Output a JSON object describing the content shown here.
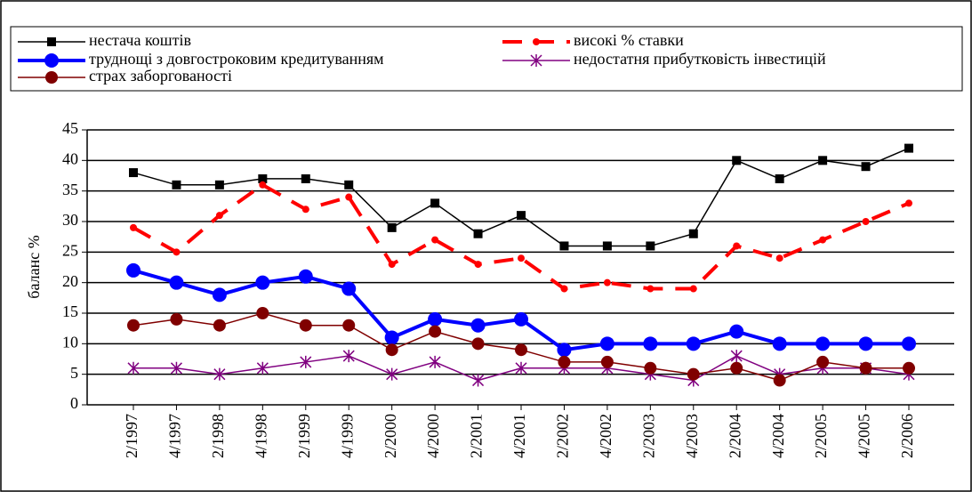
{
  "chart_data": {
    "type": "line",
    "ylabel": "баланс %",
    "categories": [
      "2/1997",
      "4/1997",
      "2/1998",
      "4/1998",
      "2/1999",
      "4/1999",
      "2/2000",
      "4/2000",
      "2/2001",
      "4/2001",
      "2/2002",
      "4/2002",
      "2/2003",
      "4/2003",
      "2/2004",
      "4/2004",
      "2/2005",
      "4/2005",
      "2/2006"
    ],
    "series": [
      {
        "name": "нестача коштів",
        "color": "#000000",
        "marker": "square",
        "dash": false,
        "width": 1.5,
        "values": [
          38,
          36,
          36,
          37,
          37,
          36,
          29,
          33,
          28,
          31,
          26,
          26,
          26,
          28,
          40,
          37,
          40,
          39,
          42
        ]
      },
      {
        "name": "високі % ставки",
        "color": "#ff0000",
        "marker": "circle",
        "dash": true,
        "width": 4,
        "values": [
          29,
          25,
          31,
          36,
          32,
          34,
          23,
          27,
          23,
          24,
          19,
          20,
          19,
          19,
          26,
          24,
          27,
          30,
          33
        ]
      },
      {
        "name": "труднощі з довгостроковим кредитуванням",
        "color": "#0000ff",
        "marker": "bigcircle",
        "dash": false,
        "width": 4,
        "values": [
          22,
          20,
          18,
          20,
          21,
          19,
          11,
          14,
          13,
          14,
          9,
          10,
          10,
          10,
          12,
          10,
          10,
          10,
          10
        ]
      },
      {
        "name": "недостатня прибутковість інвестицій",
        "color": "#800080",
        "marker": "star",
        "dash": false,
        "width": 1.5,
        "values": [
          6,
          6,
          5,
          6,
          7,
          8,
          5,
          7,
          4,
          6,
          6,
          6,
          5,
          4,
          8,
          5,
          6,
          6,
          5
        ]
      },
      {
        "name": "страх заборгованості",
        "color": "#800000",
        "marker": "circle2",
        "dash": false,
        "width": 1.5,
        "values": [
          13,
          14,
          13,
          15,
          13,
          13,
          9,
          12,
          10,
          9,
          7,
          7,
          6,
          5,
          6,
          4,
          7,
          6,
          6
        ]
      }
    ],
    "ylim": [
      0,
      45
    ],
    "yticks": [
      0,
      5,
      10,
      15,
      20,
      25,
      30,
      35,
      40,
      45
    ],
    "grid": true,
    "legend": "top"
  }
}
